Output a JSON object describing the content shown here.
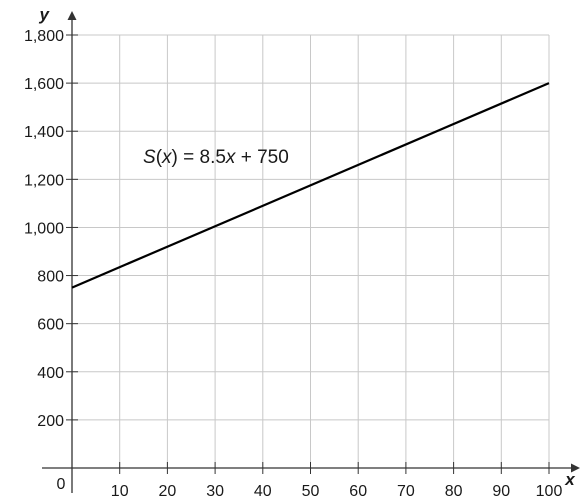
{
  "chart_data": {
    "type": "line",
    "xlabel": "x",
    "ylabel": "y",
    "xlim": [
      0,
      100
    ],
    "ylim": [
      0,
      1800
    ],
    "x_ticks": [
      10,
      20,
      30,
      40,
      50,
      60,
      70,
      80,
      90,
      100
    ],
    "y_ticks": [
      200,
      400,
      600,
      800,
      1000,
      1200,
      1400,
      1600,
      1800
    ],
    "y_tick_labels": [
      "200",
      "400",
      "600",
      "800",
      "1,000",
      "1,200",
      "1,400",
      "1,600",
      "1,800"
    ],
    "origin_label": "0",
    "grid": true,
    "series": [
      {
        "x": [
          0,
          100
        ],
        "y": [
          750,
          1600
        ],
        "color": "#000000"
      }
    ],
    "annotation": {
      "prefix": "S",
      "open": "(",
      "var": "x",
      "close_eq": ") = 8.5",
      "var2": "x",
      "suffix": " + 750"
    }
  }
}
